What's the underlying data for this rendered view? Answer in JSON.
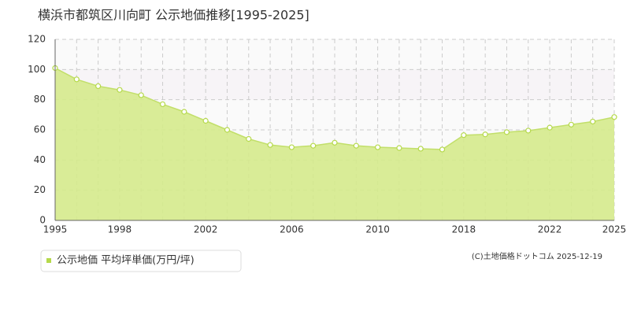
{
  "chart_data": {
    "type": "area",
    "title": "横浜市都筑区川向町 公示地価推移[1995-2025]",
    "categories": [
      "1995",
      null,
      null,
      "1998",
      null,
      null,
      null,
      "2002",
      null,
      null,
      null,
      "2006",
      null,
      null,
      null,
      "2010",
      null,
      null,
      null,
      "2018",
      null,
      null,
      null,
      "2022",
      null,
      null,
      "2025"
    ],
    "series": [
      {
        "name": "公示地価 平均坪単価(万円/坪)",
        "color": "#d5ea8c",
        "values": [
          101,
          93.5,
          89,
          86.5,
          83,
          77,
          72,
          66,
          60,
          54,
          50,
          48.5,
          49.5,
          51.5,
          49.5,
          48.5,
          48,
          47.5,
          47,
          56.5,
          57,
          58.5,
          59.5,
          61.5,
          63.5,
          65.5,
          68.5
        ]
      }
    ],
    "ylim": [
      0,
      120
    ],
    "yticks": [
      0,
      20,
      40,
      60,
      80,
      100,
      120
    ],
    "grid": true,
    "source": "(C)土地価格ドットコム 2025-12-19"
  }
}
